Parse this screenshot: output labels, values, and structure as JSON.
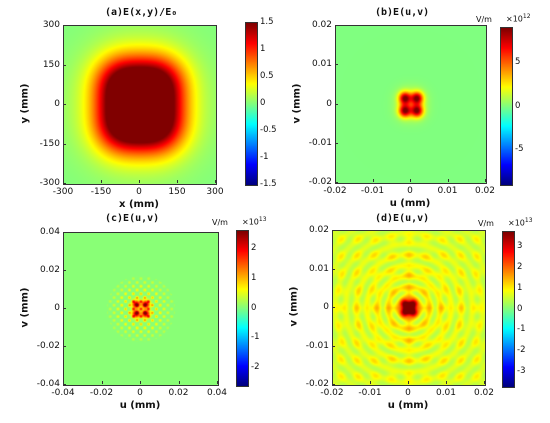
{
  "chart_data": [
    {
      "type": "heatmap",
      "title": "(a)E(x,y)/E₀",
      "xlabel": "x (mm)",
      "ylabel": "y (mm)",
      "xlim": [
        -300,
        300
      ],
      "ylim": [
        -300,
        300
      ],
      "xticks": [
        "-300",
        "-150",
        "0",
        "150",
        "300"
      ],
      "yticks": [
        "300",
        "150",
        "0",
        "-150",
        "-300"
      ],
      "colorbar": {
        "ticks": [
          "1.5",
          "1",
          "0.5",
          "0",
          "-0.5",
          "-1",
          "-1.5"
        ],
        "range": [
          -1.5,
          1.5
        ],
        "unit": "",
        "exponent": ""
      },
      "pattern": "four-lobe",
      "peak_positions": [
        [
          -70,
          75
        ],
        [
          70,
          75
        ],
        [
          -70,
          -75
        ],
        [
          70,
          -75
        ]
      ],
      "lobe_width": 75,
      "amplitude": 1.4,
      "background": 0
    },
    {
      "type": "heatmap",
      "title": "(b)E(u,v)",
      "xlabel": "u (mm)",
      "ylabel": "v (mm)",
      "xlim": [
        -0.02,
        0.02
      ],
      "ylim": [
        -0.02,
        0.02
      ],
      "xticks": [
        "-0.02",
        "-0.01",
        "0",
        "0.01",
        "0.02"
      ],
      "yticks": [
        "0.02",
        "0.01",
        "0",
        "-0.01",
        "-0.02"
      ],
      "colorbar": {
        "ticks": [
          "5",
          "0",
          "-5"
        ],
        "range": [
          -9,
          9
        ],
        "unit": "V/m",
        "exponent": "12"
      },
      "pattern": "four-lobe",
      "peak_positions": [
        [
          -0.0016,
          0.0016
        ],
        [
          0.0016,
          0.0016
        ],
        [
          -0.0016,
          -0.0016
        ],
        [
          0.0016,
          -0.0016
        ]
      ],
      "lobe_width": 0.0011,
      "amplitude": 8,
      "background": 0
    },
    {
      "type": "heatmap",
      "title": "(c)E(u,v)",
      "xlabel": "u (mm)",
      "ylabel": "v (mm)",
      "xlim": [
        -0.04,
        0.04
      ],
      "ylim": [
        -0.04,
        0.04
      ],
      "xticks": [
        "-0.04",
        "-0.02",
        "0",
        "0.02",
        "0.04"
      ],
      "yticks": [
        "0.04",
        "0.02",
        "0",
        "-0.02",
        "-0.04"
      ],
      "colorbar": {
        "ticks": [
          "2",
          "1",
          "0",
          "-1",
          "-2"
        ],
        "range": [
          -2.6,
          2.6
        ],
        "unit": "V/m",
        "exponent": "13"
      },
      "pattern": "lattice",
      "peak_positions": [
        [
          -0.0025,
          0.0025
        ],
        [
          0.0025,
          0.0025
        ],
        [
          -0.0025,
          -0.0025
        ],
        [
          0.0025,
          -0.0025
        ]
      ],
      "lobe_width": 0.0015,
      "amplitude": 2.3,
      "lattice_spacing": 0.004,
      "lattice_extent": 0.016,
      "background": 0.05
    },
    {
      "type": "heatmap",
      "title": "(d)E(u,v)",
      "xlabel": "u (mm)",
      "ylabel": "v (mm)",
      "xlim": [
        -0.02,
        0.02
      ],
      "ylim": [
        -0.02,
        0.02
      ],
      "xticks": [
        "-0.02",
        "-0.01",
        "0",
        "0.01",
        "0.02"
      ],
      "yticks": [
        "0.02",
        "0.01",
        "0",
        "-0.01",
        "-0.02"
      ],
      "colorbar": {
        "ticks": [
          "3",
          "2",
          "1",
          "0",
          "-1",
          "-2",
          "-3"
        ],
        "range": [
          -3.7,
          3.7
        ],
        "unit": "V/m",
        "exponent": "13"
      },
      "pattern": "diffraction",
      "peak_positions": [
        [
          -0.001,
          0.001
        ],
        [
          0.001,
          0.001
        ],
        [
          -0.001,
          -0.001
        ],
        [
          0.001,
          -0.001
        ]
      ],
      "lobe_width": 0.0008,
      "amplitude": 3.4,
      "background": 0.4
    }
  ]
}
